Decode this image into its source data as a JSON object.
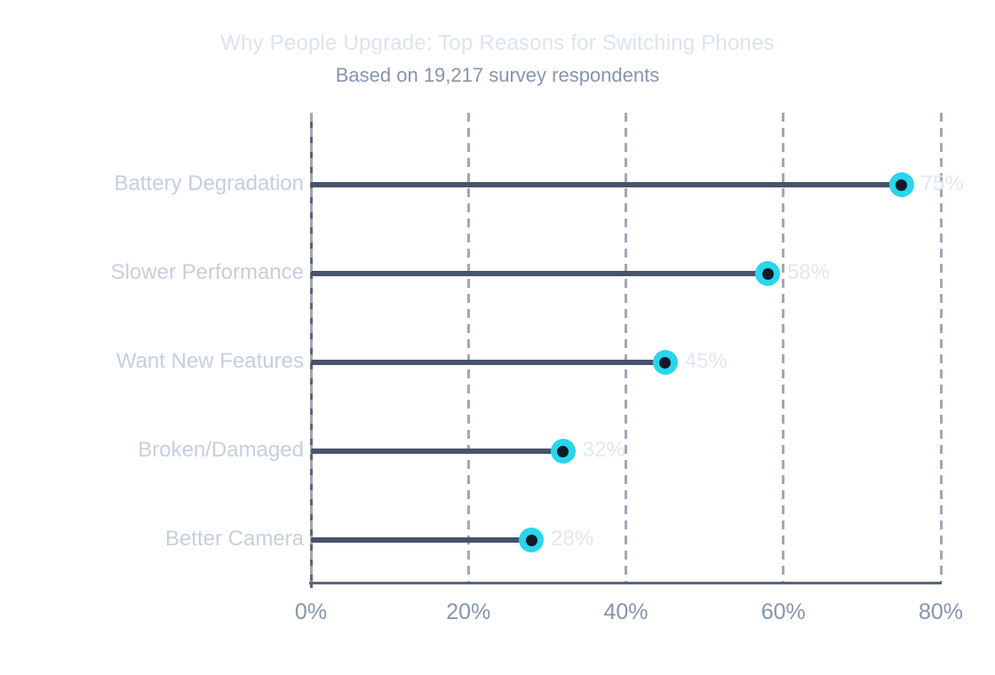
{
  "chart_data": {
    "type": "bar",
    "variant": "horizontal-lollipop",
    "title": "Why People Upgrade: Top Reasons for Switching Phones",
    "subtitle": "Based on 19,217 survey respondents",
    "categories": [
      "Battery Degradation",
      "Slower Performance",
      "Want New Features",
      "Broken/Damaged",
      "Better Camera"
    ],
    "values": [
      75,
      58,
      45,
      32,
      28
    ],
    "value_labels": [
      "75%",
      "58%",
      "45%",
      "32%",
      "28%"
    ],
    "xlabel": "",
    "ylabel": "",
    "xlim": [
      0,
      80
    ],
    "xticks": [
      0,
      20,
      40,
      60,
      80
    ],
    "xtick_labels": [
      "0%",
      "20%",
      "40%",
      "60%",
      "80%"
    ],
    "grid": "vertical-dashed",
    "legend": "none",
    "colors": {
      "background": "#ffffff",
      "title": "#dde3ef",
      "subtitle": "#8694ab",
      "category_label": "#c6cfdd",
      "value_label": "#e2e7ef",
      "tick_label": "#8694ab",
      "stem": "#47536a",
      "dot_outer": "#29d6ec",
      "dot_inner": "#121a29",
      "gridline": "#9fa8b4",
      "axis": "#5a6678"
    }
  }
}
